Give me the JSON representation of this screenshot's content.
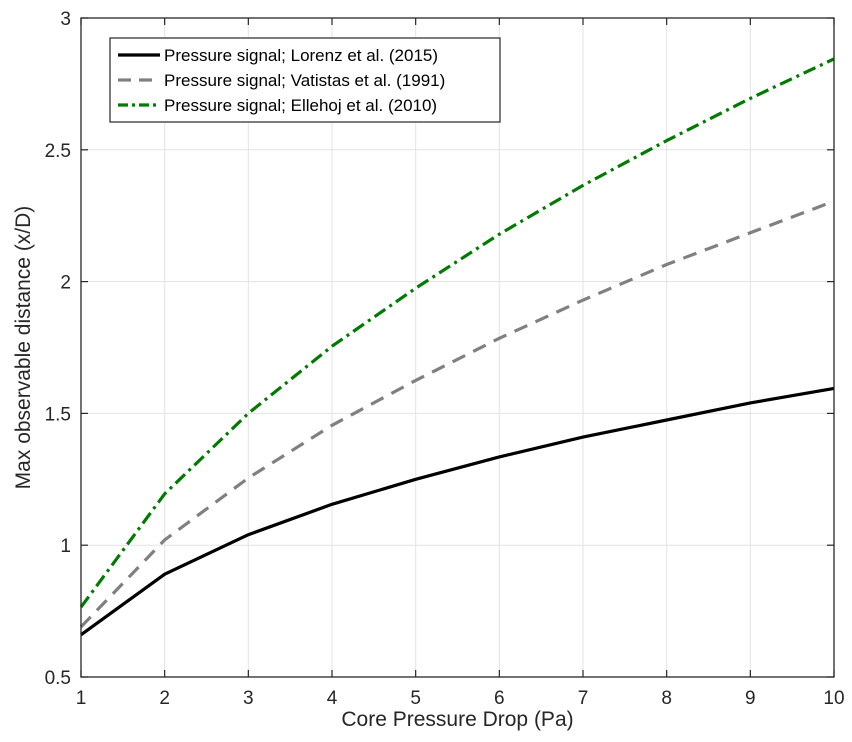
{
  "chart_data": {
    "type": "line",
    "title": "",
    "xlabel": "Core Pressure Drop (Pa)",
    "ylabel": "Max observable distance (x/D)",
    "xlim": [
      1,
      10
    ],
    "ylim": [
      0.5,
      3
    ],
    "xticks": [
      1,
      2,
      3,
      4,
      5,
      6,
      7,
      8,
      9,
      10
    ],
    "yticks": [
      0.5,
      1,
      1.5,
      2,
      2.5,
      3
    ],
    "xtick_labels": [
      "1",
      "2",
      "3",
      "4",
      "5",
      "6",
      "7",
      "8",
      "9",
      "10"
    ],
    "ytick_labels": [
      "0.5",
      "1",
      "1.5",
      "2",
      "2.5",
      "3"
    ],
    "grid": true,
    "legend_position": "top-left",
    "x": [
      1,
      2,
      3,
      4,
      5,
      6,
      7,
      8,
      9,
      10
    ],
    "series": [
      {
        "name": "Pressure signal; Lorenz et al. (2015)",
        "color": "#000000",
        "style": "solid",
        "values": [
          0.66,
          0.89,
          1.04,
          1.155,
          1.25,
          1.335,
          1.41,
          1.475,
          1.54,
          1.595
        ]
      },
      {
        "name": "Pressure signal; Vatistas et al. (1991)",
        "color": "#808080",
        "style": "dashed",
        "values": [
          0.69,
          1.02,
          1.255,
          1.455,
          1.625,
          1.785,
          1.93,
          2.065,
          2.185,
          2.305
        ]
      },
      {
        "name": "Pressure signal; Ellehoj et al. (2010)",
        "color": "#007a00",
        "style": "dash-dot",
        "values": [
          0.765,
          1.195,
          1.5,
          1.755,
          1.975,
          2.18,
          2.365,
          2.535,
          2.695,
          2.845
        ]
      }
    ]
  }
}
